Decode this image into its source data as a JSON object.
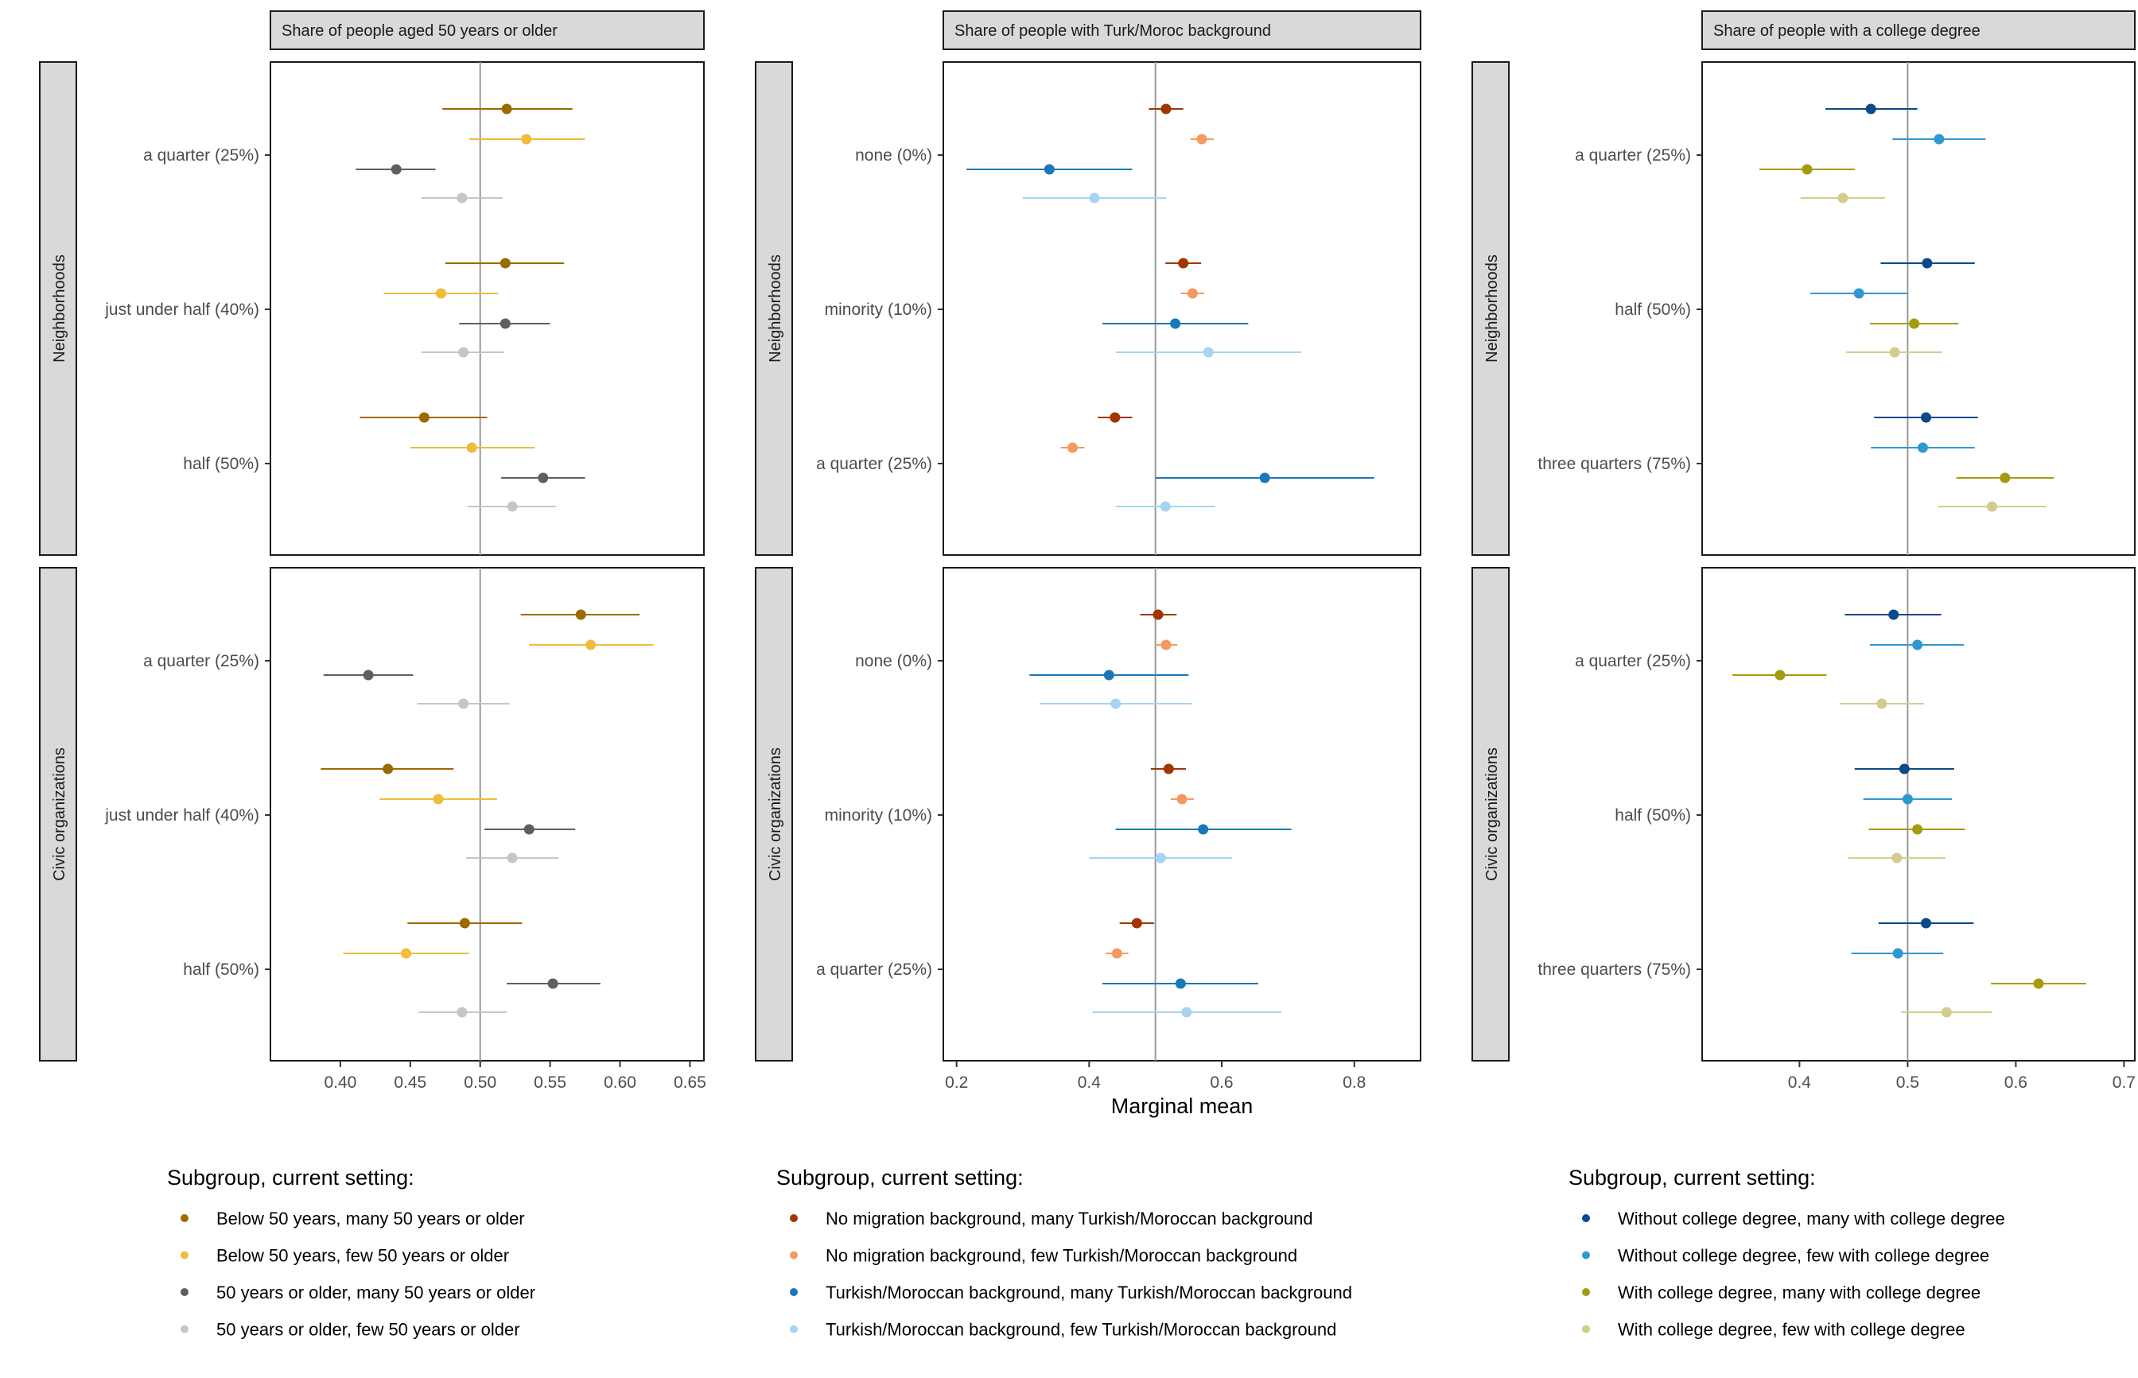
{
  "chart_data": {
    "type": "scatter",
    "xlabel": "Marginal mean",
    "reference_line": 0.5,
    "x_axis_side": "bottom",
    "rows": [
      "Neighborhoods",
      "Civic organizations"
    ],
    "panels": [
      {
        "title": "Share of people aged 50 years or older",
        "xlim": [
          0.35,
          0.66
        ],
        "xticks": [
          0.4,
          0.45,
          0.5,
          0.55,
          0.6,
          0.65
        ],
        "xtick_labels": [
          "0.40",
          "0.45",
          "0.50",
          "0.55",
          "0.60",
          "0.65"
        ],
        "categories": [
          "a quarter (25%)",
          "just under half (40%)",
          "half (50%)"
        ],
        "legend_title": "Subgroup, current setting:",
        "series": [
          {
            "name": "Below 50 years, many 50 years or older",
            "color": "#9c6b00"
          },
          {
            "name": "Below 50 years, few 50 years or older",
            "color": "#eebd3d"
          },
          {
            "name": "50 years or older, many 50 years or older",
            "color": "#5f5f5f"
          },
          {
            "name": "50 years or older, few 50 years or older",
            "color": "#c6c6c6"
          }
        ],
        "rows": [
          {
            "estimates": [
              [
                [
                  0.519,
                  0.473,
                  0.566
                ],
                [
                  0.533,
                  0.492,
                  0.575
                ],
                [
                  0.44,
                  0.411,
                  0.468
                ],
                [
                  0.487,
                  0.458,
                  0.516
                ]
              ],
              [
                [
                  0.518,
                  0.475,
                  0.56
                ],
                [
                  0.472,
                  0.431,
                  0.513
                ],
                [
                  0.518,
                  0.485,
                  0.55
                ],
                [
                  0.488,
                  0.458,
                  0.517
                ]
              ],
              [
                [
                  0.46,
                  0.414,
                  0.505
                ],
                [
                  0.494,
                  0.45,
                  0.539
                ],
                [
                  0.545,
                  0.515,
                  0.575
                ],
                [
                  0.523,
                  0.491,
                  0.554
                ]
              ]
            ]
          },
          {
            "estimates": [
              [
                [
                  0.572,
                  0.529,
                  0.614
                ],
                [
                  0.579,
                  0.535,
                  0.624
                ],
                [
                  0.42,
                  0.388,
                  0.452
                ],
                [
                  0.488,
                  0.455,
                  0.521
                ]
              ],
              [
                [
                  0.434,
                  0.386,
                  0.481
                ],
                [
                  0.47,
                  0.428,
                  0.512
                ],
                [
                  0.535,
                  0.503,
                  0.568
                ],
                [
                  0.523,
                  0.49,
                  0.556
                ]
              ],
              [
                [
                  0.489,
                  0.448,
                  0.53
                ],
                [
                  0.447,
                  0.402,
                  0.492
                ],
                [
                  0.552,
                  0.519,
                  0.586
                ],
                [
                  0.487,
                  0.456,
                  0.519
                ]
              ]
            ]
          }
        ]
      },
      {
        "title": "Share of people with Turk/Moroc background",
        "xlim": [
          0.18,
          0.9
        ],
        "xticks": [
          0.2,
          0.4,
          0.6,
          0.8
        ],
        "xtick_labels": [
          "0.2",
          "0.4",
          "0.6",
          "0.8"
        ],
        "categories": [
          "none (0%)",
          "minority (10%)",
          "a quarter (25%)"
        ],
        "legend_title": "Subgroup, current setting:",
        "series": [
          {
            "name": "No migration background, many Turkish/Moroccan background",
            "color": "#a13600"
          },
          {
            "name": "No migration background, few Turkish/Moroccan background",
            "color": "#f39a62"
          },
          {
            "name": "Turkish/Moroccan background, many Turkish/Moroccan background",
            "color": "#1a78b8"
          },
          {
            "name": "Turkish/Moroccan background, few Turkish/Moroccan background",
            "color": "#a6d4f2"
          }
        ],
        "rows": [
          {
            "estimates": [
              [
                [
                  0.516,
                  0.49,
                  0.542
                ],
                [
                  0.57,
                  0.553,
                  0.588
                ],
                [
                  0.34,
                  0.215,
                  0.465
                ],
                [
                  0.408,
                  0.3,
                  0.516
                ]
              ],
              [
                [
                  0.542,
                  0.515,
                  0.569
                ],
                [
                  0.556,
                  0.538,
                  0.574
                ],
                [
                  0.53,
                  0.42,
                  0.64
                ],
                [
                  0.58,
                  0.44,
                  0.72
                ]
              ],
              [
                [
                  0.439,
                  0.413,
                  0.465
                ],
                [
                  0.375,
                  0.357,
                  0.393
                ],
                [
                  0.665,
                  0.5,
                  0.83
                ],
                [
                  0.515,
                  0.44,
                  0.59
                ]
              ]
            ]
          },
          {
            "estimates": [
              [
                [
                  0.504,
                  0.477,
                  0.532
                ],
                [
                  0.516,
                  0.499,
                  0.533
                ],
                [
                  0.43,
                  0.31,
                  0.55
                ],
                [
                  0.44,
                  0.325,
                  0.555
                ]
              ],
              [
                [
                  0.52,
                  0.493,
                  0.546
                ],
                [
                  0.54,
                  0.523,
                  0.558
                ],
                [
                  0.572,
                  0.44,
                  0.705
                ],
                [
                  0.508,
                  0.4,
                  0.616
                ]
              ],
              [
                [
                  0.472,
                  0.446,
                  0.498
                ],
                [
                  0.442,
                  0.425,
                  0.459
                ],
                [
                  0.538,
                  0.42,
                  0.655
                ],
                [
                  0.547,
                  0.405,
                  0.69
                ]
              ]
            ]
          }
        ]
      },
      {
        "title": "Share of people with a college degree",
        "xlim": [
          0.31,
          0.71
        ],
        "xticks": [
          0.4,
          0.5,
          0.6,
          0.7
        ],
        "xtick_labels": [
          "0.4",
          "0.5",
          "0.6",
          "0.7"
        ],
        "categories": [
          "a quarter (25%)",
          "half (50%)",
          "three quarters (75%)"
        ],
        "legend_title": "Subgroup, current setting:",
        "series": [
          {
            "name": "Without college degree, many with college degree",
            "color": "#0b4a8a"
          },
          {
            "name": "Without college degree, few with college degree",
            "color": "#3197d3"
          },
          {
            "name": "With college degree, many with college degree",
            "color": "#a69b0e"
          },
          {
            "name": "With college degree, few with college degree",
            "color": "#d4cc8d"
          }
        ],
        "rows": [
          {
            "estimates": [
              [
                [
                  0.466,
                  0.424,
                  0.509
                ],
                [
                  0.529,
                  0.486,
                  0.572
                ],
                [
                  0.407,
                  0.363,
                  0.451
                ],
                [
                  0.44,
                  0.401,
                  0.479
                ]
              ],
              [
                [
                  0.518,
                  0.475,
                  0.562
                ],
                [
                  0.455,
                  0.41,
                  0.5
                ],
                [
                  0.506,
                  0.465,
                  0.547
                ],
                [
                  0.488,
                  0.443,
                  0.532
                ]
              ],
              [
                [
                  0.517,
                  0.469,
                  0.565
                ],
                [
                  0.514,
                  0.466,
                  0.562
                ],
                [
                  0.59,
                  0.545,
                  0.635
                ],
                [
                  0.578,
                  0.528,
                  0.628
                ]
              ]
            ]
          },
          {
            "estimates": [
              [
                [
                  0.487,
                  0.442,
                  0.531
                ],
                [
                  0.509,
                  0.465,
                  0.552
                ],
                [
                  0.382,
                  0.338,
                  0.425
                ],
                [
                  0.476,
                  0.437,
                  0.515
                ]
              ],
              [
                [
                  0.497,
                  0.451,
                  0.543
                ],
                [
                  0.5,
                  0.459,
                  0.541
                ],
                [
                  0.509,
                  0.464,
                  0.553
                ],
                [
                  0.49,
                  0.445,
                  0.535
                ]
              ],
              [
                [
                  0.517,
                  0.473,
                  0.561
                ],
                [
                  0.491,
                  0.448,
                  0.533
                ],
                [
                  0.621,
                  0.577,
                  0.665
                ],
                [
                  0.536,
                  0.494,
                  0.578
                ]
              ]
            ]
          }
        ]
      }
    ]
  }
}
